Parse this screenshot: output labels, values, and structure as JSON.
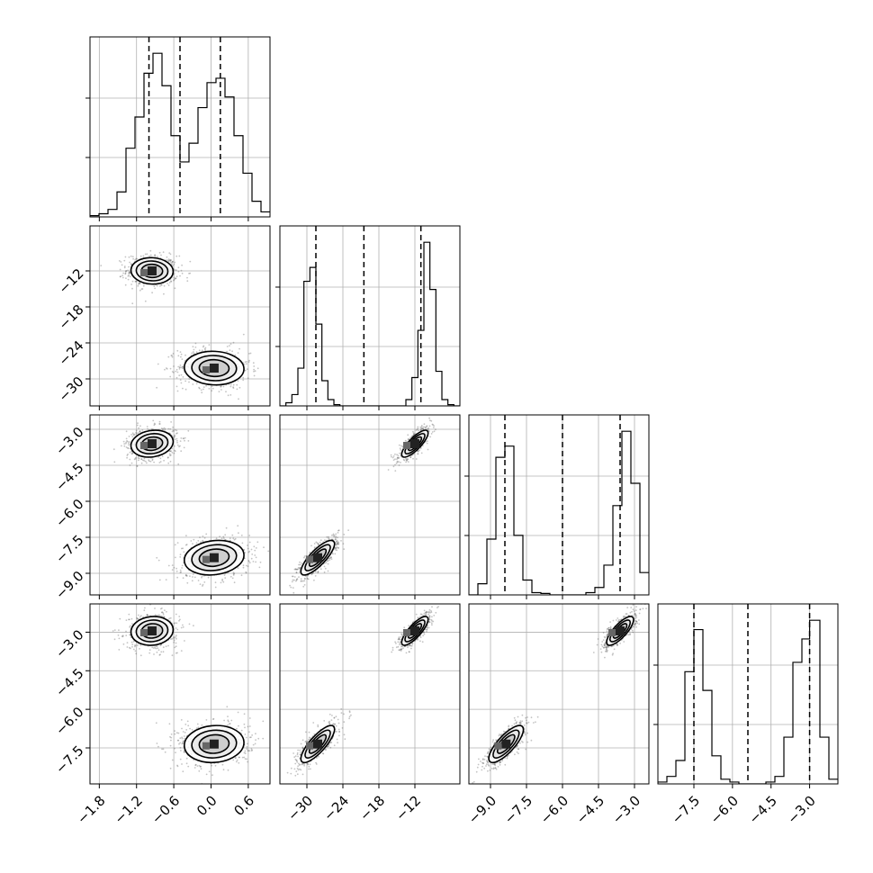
{
  "chart_data": {
    "type": "corner",
    "title": "",
    "grid": true,
    "dimensions": [
      {
        "index": 0,
        "name": "",
        "range": [
          -1.95,
          0.95
        ],
        "ticks": [
          -1.8,
          -1.2,
          -0.6,
          0.0,
          0.6
        ],
        "tick_labels": [
          "−1.8",
          "−1.2",
          "−0.6",
          "0.0",
          "0.6"
        ]
      },
      {
        "index": 1,
        "name": "",
        "range": [
          -34.5,
          -4.5
        ],
        "ticks": [
          -30,
          -24,
          -18,
          -12
        ],
        "tick_labels": [
          "−30",
          "−24",
          "−18",
          "−12"
        ]
      },
      {
        "index": 2,
        "name": "",
        "range": [
          -9.9,
          -2.4
        ],
        "ticks": [
          -9.0,
          -7.5,
          -6.0,
          -4.5,
          -3.0
        ],
        "tick_labels": [
          "−9.0",
          "−7.5",
          "−6.0",
          "−4.5",
          "−3.0"
        ]
      },
      {
        "index": 3,
        "name": "",
        "range": [
          -8.9,
          -1.9
        ],
        "ticks": [
          -7.5,
          -6.0,
          -4.5,
          -3.0
        ],
        "tick_labels": [
          "−7.5",
          "−6.0",
          "−4.5",
          "−3.0"
        ]
      }
    ],
    "histograms": [
      {
        "dim": 0,
        "bin_edges": [
          -1.95,
          -1.805,
          -1.66,
          -1.515,
          -1.37,
          -1.225,
          -1.08,
          -0.935,
          -0.79,
          -0.645,
          -0.5,
          -0.355,
          -0.21,
          -0.065,
          0.08,
          0.225,
          0.37,
          0.515,
          0.66,
          0.805,
          0.95
        ],
        "counts": [
          2,
          5,
          12,
          40,
          110,
          160,
          230,
          262,
          210,
          130,
          88,
          118,
          175,
          215,
          222,
          192,
          130,
          70,
          25,
          8
        ],
        "quantiles": [
          -1.0,
          -0.5,
          0.15
        ]
      },
      {
        "dim": 1,
        "bin_edges": [
          -34.5,
          -33.5,
          -32.5,
          -31.5,
          -30.5,
          -29.5,
          -28.5,
          -27.5,
          -26.5,
          -25.5,
          -24.5,
          -23.5,
          -22.5,
          -21.5,
          -20.5,
          -19.5,
          -18.5,
          -17.5,
          -16.5,
          -15.5,
          -14.5,
          -13.5,
          -12.5,
          -11.5,
          -10.5,
          -9.5,
          -8.5,
          -7.5,
          -6.5,
          -5.5,
          -4.5
        ],
        "counts": [
          0,
          5,
          18,
          60,
          198,
          220,
          130,
          40,
          10,
          2,
          0,
          0,
          0,
          0,
          0,
          0,
          0,
          0,
          0,
          0,
          0,
          10,
          45,
          120,
          260,
          185,
          55,
          10,
          2,
          0
        ],
        "quantiles": [
          -28.5,
          -20.5,
          -11.0
        ]
      },
      {
        "dim": 2,
        "bin_edges": [
          -9.9,
          -9.525,
          -9.15,
          -8.775,
          -8.4,
          -8.025,
          -7.65,
          -7.275,
          -6.9,
          -6.525,
          -6.15,
          -5.775,
          -5.4,
          -5.025,
          -4.65,
          -4.275,
          -3.9,
          -3.525,
          -3.15,
          -2.775,
          -2.4
        ],
        "counts": [
          0,
          15,
          75,
          185,
          200,
          80,
          20,
          3,
          2,
          0,
          0,
          0,
          0,
          3,
          10,
          40,
          120,
          220,
          150,
          30
        ],
        "quantiles": [
          -8.4,
          -6.0,
          -3.6
        ]
      },
      {
        "dim": 3,
        "bin_edges": [
          -8.9,
          -8.55,
          -8.2,
          -7.85,
          -7.5,
          -7.15,
          -6.8,
          -6.45,
          -6.1,
          -5.75,
          -5.4,
          -5.05,
          -4.7,
          -4.35,
          -4.0,
          -3.65,
          -3.3,
          -3.0,
          -2.6,
          -2.25,
          -1.9
        ],
        "counts": [
          2,
          8,
          25,
          120,
          165,
          100,
          30,
          5,
          2,
          0,
          0,
          0,
          2,
          8,
          50,
          130,
          155,
          175,
          50,
          5
        ],
        "quantiles": [
          -7.5,
          -5.4,
          -3.0
        ]
      }
    ],
    "modes": [
      {
        "weight": 0.5,
        "mean": [
          -0.95,
          -12.0,
          -3.6,
          -2.95
        ],
        "sd": [
          0.17,
          1.1,
          0.28,
          0.28
        ]
      },
      {
        "weight": 0.5,
        "mean": [
          0.05,
          -28.2,
          -8.35,
          -7.35
        ],
        "sd": [
          0.24,
          1.4,
          0.36,
          0.36
        ]
      }
    ],
    "correlations": [
      {
        "pair": [
          0,
          1
        ],
        "rho": -0.05
      },
      {
        "pair": [
          0,
          2
        ],
        "rho": 0.15
      },
      {
        "pair": [
          0,
          3
        ],
        "rho": 0.08
      },
      {
        "pair": [
          1,
          2
        ],
        "rho": 0.8
      },
      {
        "pair": [
          1,
          3
        ],
        "rho": 0.8
      },
      {
        "pair": [
          2,
          3
        ],
        "rho": 0.78
      }
    ],
    "contour_levels_sigma": [
      1.0,
      1.5,
      2.0
    ]
  }
}
